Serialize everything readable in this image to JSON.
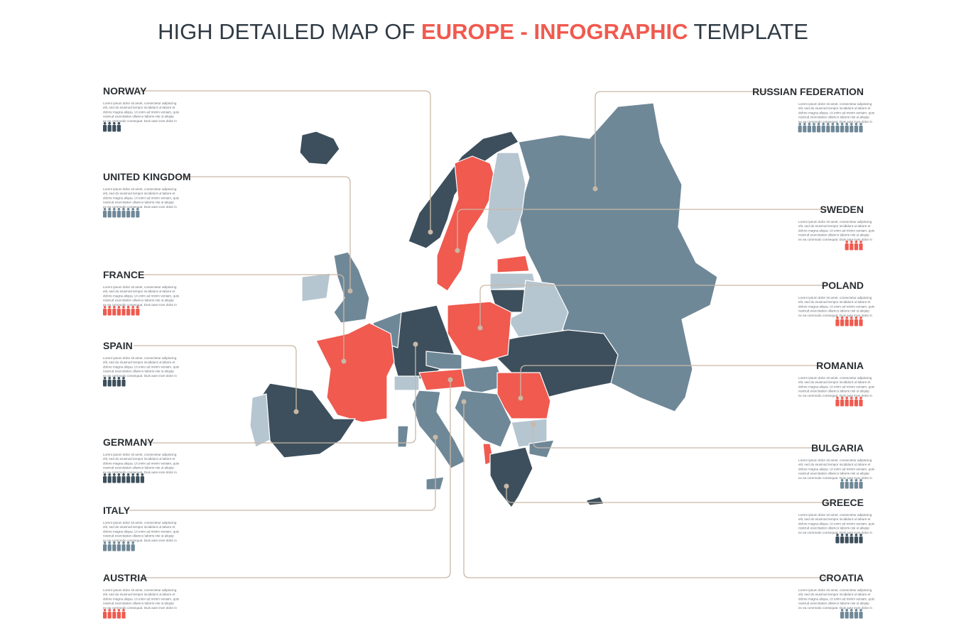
{
  "title_parts": [
    "HIGH DETAILED MAP OF ",
    "EUROPE",
    " - ",
    "INFOGRAPHIC",
    " TEMPLATE"
  ],
  "description_lines": [
    "Lorem ipsum dolor sit amet, consectetur adipiscing",
    "elit, sed do eiusmod tempor incididunt ut labore et",
    "dolore magna aliqua. Ut enim ad minim veniam, quis",
    "nostrud exercitation ullamco laboris nisi ut aliquip",
    "ex ea commodo consequat. Duis aute irure dolor in"
  ],
  "left_countries": [
    {
      "name": "NORWAY",
      "people": 4,
      "color": "#3d4f5c"
    },
    {
      "name": "UNITED KINGDOM",
      "people": 8,
      "color": "#6f8898"
    },
    {
      "name": "FRANCE",
      "people": 8,
      "color": "#f05a4f"
    },
    {
      "name": "SPAIN",
      "people": 5,
      "color": "#3d4f5c"
    },
    {
      "name": "GERMANY",
      "people": 9,
      "color": "#3d4f5c"
    },
    {
      "name": "ITALY",
      "people": 7,
      "color": "#6f8898"
    },
    {
      "name": "AUSTRIA",
      "people": 5,
      "color": "#f05a4f"
    }
  ],
  "right_countries": [
    {
      "name": "RUSSIAN FEDERATION",
      "people": 14,
      "color": "#6f8898"
    },
    {
      "name": "SWEDEN",
      "people": 4,
      "color": "#f05a4f"
    },
    {
      "name": "POLAND",
      "people": 6,
      "color": "#f05a4f"
    },
    {
      "name": "ROMANIA",
      "people": 6,
      "color": "#f05a4f"
    },
    {
      "name": "BULGARIA",
      "people": 5,
      "color": "#6f8898"
    },
    {
      "name": "GREECE",
      "people": 6,
      "color": "#3d4f5c"
    },
    {
      "name": "CROATIA",
      "people": 5,
      "color": "#6f8898"
    }
  ]
}
